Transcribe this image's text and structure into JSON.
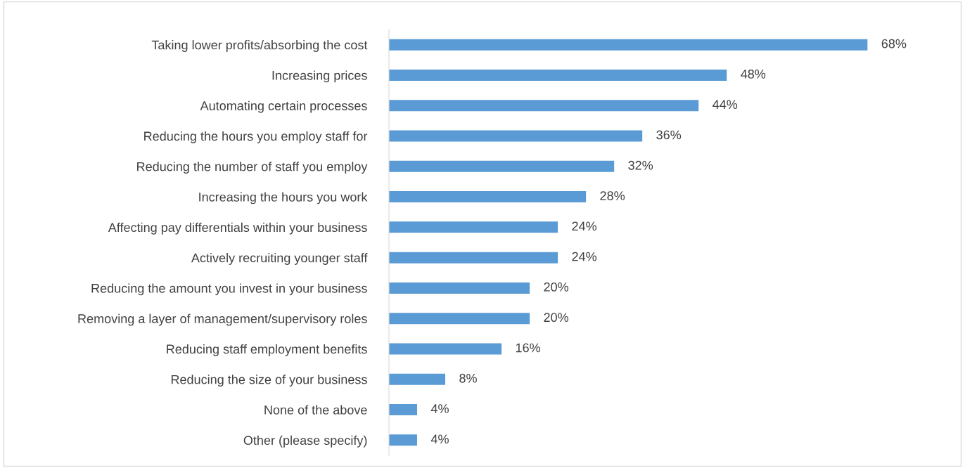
{
  "chart_data": {
    "type": "bar",
    "orientation": "horizontal",
    "color": "#5b9bd5",
    "legend": false,
    "grid": false,
    "categories": [
      "Taking lower profits/absorbing the cost",
      "Increasing prices",
      "Automating certain processes",
      "Reducing the hours you employ staff for",
      "Reducing the number of staff you employ",
      "Increasing the hours you work",
      "Affecting pay differentials within your business",
      "Actively recruiting younger staff",
      "Reducing the amount you invest in your business",
      "Removing a layer of management/supervisory roles",
      "Reducing staff employment benefits",
      "Reducing the size of your business",
      "None of the above",
      "Other (please specify)"
    ],
    "values": [
      68,
      48,
      44,
      36,
      32,
      28,
      24,
      24,
      20,
      20,
      16,
      8,
      4,
      4
    ],
    "value_labels": [
      "68%",
      "48%",
      "44%",
      "36%",
      "32%",
      "28%",
      "24%",
      "24%",
      "20%",
      "20%",
      "16%",
      "8%",
      "4%",
      "4%"
    ]
  }
}
